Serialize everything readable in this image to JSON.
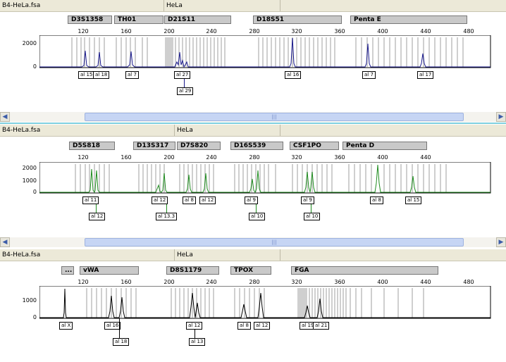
{
  "panels": [
    {
      "file": "B4-HeLa.fsa",
      "sample": "HeLa",
      "color": "#1a1a8c",
      "markers": [
        "D3S1358",
        "TH01",
        "D21S11",
        "D18S51",
        "Penta E"
      ],
      "ticks": [
        "120",
        "160",
        "200",
        "240",
        "280",
        "320",
        "360",
        "400",
        "440",
        "480"
      ],
      "yticks": [
        "2000",
        "0"
      ],
      "alleles_row1": [
        "al 15",
        "al 18",
        "al 7",
        "al 27",
        "al 16",
        "al 7",
        "al 17"
      ],
      "alleles_row2": [
        "al 29"
      ]
    },
    {
      "file": "B4-HeLa.fsa",
      "sample": "HeLa",
      "color": "#1f8c1f",
      "markers": [
        "D5S818",
        "D13S317",
        "D7S820",
        "D16S539",
        "CSF1PO",
        "Penta D"
      ],
      "ticks": [
        "120",
        "160",
        "200",
        "240",
        "280",
        "320",
        "360",
        "400",
        "440"
      ],
      "yticks": [
        "2000",
        "1000",
        "0"
      ],
      "alleles_row1": [
        "al 11",
        "al 12",
        "al 8",
        "al 12",
        "al 9",
        "al 9",
        "al 8",
        "al 15"
      ],
      "alleles_row2": [
        "al 12",
        "al 13.3",
        "al 10",
        "al 10"
      ]
    },
    {
      "file": "B4-HeLa.fsa",
      "sample": "HeLa",
      "color": "#000000",
      "markers": [
        "...",
        "vWA",
        "D8S1179",
        "TPOX",
        "FGA"
      ],
      "ticks": [
        "120",
        "160",
        "200",
        "240",
        "280",
        "320",
        "360",
        "400",
        "440",
        "480"
      ],
      "yticks": [
        "1000",
        "0"
      ],
      "alleles_row1": [
        "al X",
        "al 16",
        "al 12",
        "al 8",
        "al 12",
        "al 19",
        "al 21"
      ],
      "alleles_row2": [
        "al 18",
        "al 13"
      ]
    }
  ],
  "scrollbar": {
    "grip": "|||"
  },
  "colors": {
    "header_bg": "#ece9d8",
    "bin_gray": "#cfcfcf",
    "divider": "#7fd0e0"
  }
}
